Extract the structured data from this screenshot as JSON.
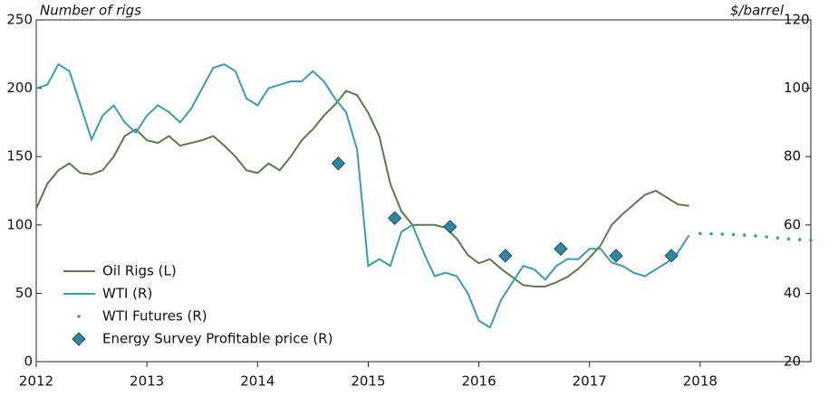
{
  "chart_data": {
    "type": "line",
    "y_label": "Number of rigs",
    "y2_label": "$/barrel",
    "xlim": [
      2012,
      2019
    ],
    "xticks": [
      2012,
      2013,
      2014,
      2015,
      2016,
      2017,
      2018
    ],
    "ylim": [
      0,
      250
    ],
    "yticks": [
      0,
      50,
      100,
      150,
      200,
      250
    ],
    "y2lim": [
      20,
      120
    ],
    "y2ticks": [
      20,
      40,
      60,
      80,
      100,
      120
    ],
    "legend": "lower left",
    "series": [
      {
        "name": "Oil Rigs (L)",
        "color": "#5b7a4c",
        "style": "line",
        "x": [
          2012.0,
          2012.1,
          2012.2,
          2012.3,
          2012.4,
          2012.5,
          2012.6,
          2012.7,
          2012.8,
          2012.9,
          2013.0,
          2013.1,
          2013.2,
          2013.3,
          2013.4,
          2013.5,
          2013.6,
          2013.7,
          2013.8,
          2013.9,
          2014.0,
          2014.1,
          2014.2,
          2014.3,
          2014.4,
          2014.5,
          2014.6,
          2014.7,
          2014.8,
          2014.9,
          2015.0,
          2015.1,
          2015.2,
          2015.3,
          2015.4,
          2015.5,
          2015.6,
          2015.7,
          2015.8,
          2015.9,
          2016.0,
          2016.1,
          2016.2,
          2016.3,
          2016.4,
          2016.5,
          2016.6,
          2016.7,
          2016.8,
          2016.9,
          2017.0,
          2017.1,
          2017.2,
          2017.3,
          2017.4,
          2017.5,
          2017.6,
          2017.7,
          2017.8,
          2017.9
        ],
        "values": [
          112,
          130,
          140,
          145,
          138,
          137,
          140,
          150,
          165,
          170,
          162,
          160,
          165,
          158,
          160,
          162,
          165,
          158,
          150,
          140,
          138,
          145,
          140,
          150,
          162,
          170,
          180,
          188,
          198,
          195,
          182,
          165,
          130,
          110,
          100,
          100,
          100,
          98,
          90,
          78,
          72,
          75,
          68,
          62,
          56,
          55,
          55,
          58,
          62,
          68,
          76,
          85,
          100,
          108,
          115,
          122,
          125,
          120,
          115,
          114
        ]
      },
      {
        "name": "WTI (R)",
        "color": "#3a9bb2",
        "style": "line",
        "axis": "y2",
        "x": [
          2012.0,
          2012.1,
          2012.2,
          2012.3,
          2012.4,
          2012.5,
          2012.6,
          2012.7,
          2012.8,
          2012.9,
          2013.0,
          2013.1,
          2013.2,
          2013.3,
          2013.4,
          2013.5,
          2013.6,
          2013.7,
          2013.8,
          2013.9,
          2014.0,
          2014.1,
          2014.2,
          2014.3,
          2014.4,
          2014.5,
          2014.6,
          2014.7,
          2014.8,
          2014.9,
          2015.0,
          2015.1,
          2015.2,
          2015.3,
          2015.4,
          2015.5,
          2015.6,
          2015.7,
          2015.8,
          2015.9,
          2016.0,
          2016.1,
          2016.2,
          2016.3,
          2016.4,
          2016.5,
          2016.6,
          2016.7,
          2016.8,
          2016.9,
          2017.0,
          2017.1,
          2017.2,
          2017.3,
          2017.4,
          2017.5,
          2017.6,
          2017.7,
          2017.8,
          2017.9
        ],
        "values": [
          100,
          101,
          107,
          105,
          95,
          85,
          92,
          95,
          90,
          87,
          92,
          95,
          93,
          90,
          94,
          100,
          106,
          107,
          105,
          97,
          95,
          100,
          101,
          102,
          102,
          105,
          102,
          97,
          93,
          82,
          48,
          50,
          48,
          58,
          60,
          52,
          45,
          46,
          45,
          40,
          32,
          30,
          38,
          43,
          48,
          47,
          44,
          48,
          50,
          50,
          53,
          53,
          49,
          48,
          46,
          45,
          47,
          49,
          52,
          57
        ]
      },
      {
        "name": "WTI Futures (R)",
        "color": "#3a9bb2",
        "style": "dots",
        "axis": "y2",
        "x": [
          2018.0,
          2018.1,
          2018.2,
          2018.3,
          2018.4,
          2018.5,
          2018.6,
          2018.7,
          2018.8,
          2018.9,
          2019.0
        ],
        "values": [
          57.5,
          57.4,
          57.3,
          57.2,
          57,
          56.8,
          56.5,
          56.2,
          55.9,
          55.7,
          55.5
        ]
      },
      {
        "name": "Energy Survey Profitable price (R)",
        "color": "#2f87a3",
        "style": "diamond",
        "axis": "y2",
        "x": [
          2014.73,
          2015.24,
          2015.74,
          2016.24,
          2016.74,
          2017.24,
          2017.74
        ],
        "values": [
          78,
          62,
          59.5,
          51,
          53,
          51,
          51
        ]
      }
    ]
  }
}
